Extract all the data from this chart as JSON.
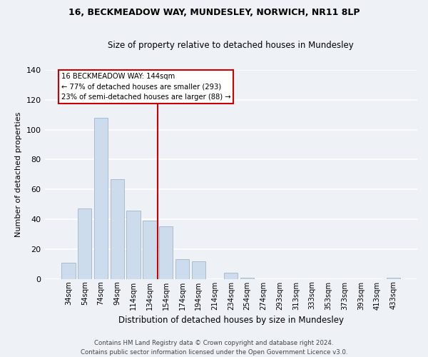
{
  "title": "16, BECKMEADOW WAY, MUNDESLEY, NORWICH, NR11 8LP",
  "subtitle": "Size of property relative to detached houses in Mundesley",
  "xlabel": "Distribution of detached houses by size in Mundesley",
  "ylabel": "Number of detached properties",
  "bar_labels": [
    "34sqm",
    "54sqm",
    "74sqm",
    "94sqm",
    "114sqm",
    "134sqm",
    "154sqm",
    "174sqm",
    "194sqm",
    "214sqm",
    "234sqm",
    "254sqm",
    "274sqm",
    "293sqm",
    "313sqm",
    "333sqm",
    "353sqm",
    "373sqm",
    "393sqm",
    "413sqm",
    "433sqm"
  ],
  "bar_values": [
    11,
    47,
    108,
    67,
    46,
    39,
    35,
    13,
    12,
    0,
    4,
    1,
    0,
    0,
    0,
    0,
    0,
    0,
    0,
    0,
    1
  ],
  "bar_color": "#ccdcec",
  "bar_edge_color": "#aabccc",
  "reference_line_x": 5.5,
  "reference_line_label": "16 BECKMEADOW WAY: 144sqm",
  "annotation_line1": "← 77% of detached houses are smaller (293)",
  "annotation_line2": "23% of semi-detached houses are larger (88) →",
  "annotation_box_color": "#ffffff",
  "annotation_box_edge": "#cc0000",
  "reference_line_color": "#cc0000",
  "ylim": [
    0,
    140
  ],
  "yticks": [
    0,
    20,
    40,
    60,
    80,
    100,
    120,
    140
  ],
  "footer1": "Contains HM Land Registry data © Crown copyright and database right 2024.",
  "footer2": "Contains public sector information licensed under the Open Government Licence v3.0.",
  "bg_color": "#eef2f7",
  "plot_bg_color": "#eef2f7",
  "grid_color": "#ffffff"
}
